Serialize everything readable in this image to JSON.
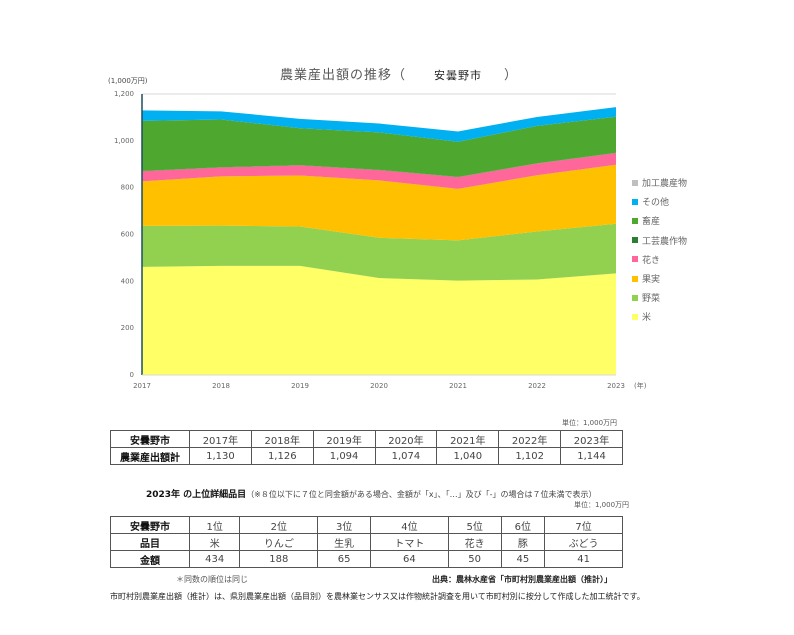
{
  "chart": {
    "title": "農業産出額の推移（",
    "city": "安曇野市",
    "title_close": "）",
    "y_unit": "(1,000万円)",
    "x_suffix": "(年)"
  },
  "chart_data": {
    "type": "area",
    "stacked": true,
    "title": "農業産出額の推移（安曇野市）",
    "xlabel": "(年)",
    "ylabel": "(1,000万円)",
    "ylim": [
      0,
      1200
    ],
    "yticks": [
      0,
      200,
      400,
      600,
      800,
      1000,
      1200
    ],
    "ytick_labels": [
      "0",
      "200",
      "400",
      "600",
      "800",
      "1,000",
      "1,200"
    ],
    "categories": [
      "2017",
      "2018",
      "2019",
      "2020",
      "2021",
      "2022",
      "2023"
    ],
    "legend_position": "right",
    "grid": false,
    "series": [
      {
        "name": "米",
        "color": "#ffff66",
        "values": [
          462,
          466,
          466,
          414,
          403,
          408,
          434
        ]
      },
      {
        "name": "野菜",
        "color": "#92d050",
        "values": [
          175,
          172,
          168,
          172,
          172,
          205,
          212
        ]
      },
      {
        "name": "果実",
        "color": "#ffc000",
        "values": [
          190,
          210,
          218,
          245,
          220,
          240,
          252
        ]
      },
      {
        "name": "花き",
        "color": "#ff6699",
        "values": [
          43,
          38,
          43,
          44,
          50,
          50,
          50
        ]
      },
      {
        "name": "工芸農作物",
        "color": "#2e7d32",
        "values": [
          1,
          1,
          1,
          1,
          1,
          1,
          1
        ]
      },
      {
        "name": "畜産",
        "color": "#4ea72e",
        "values": [
          214,
          204,
          158,
          160,
          150,
          160,
          154
        ]
      },
      {
        "name": "その他",
        "color": "#00b0f0",
        "values": [
          45,
          35,
          40,
          38,
          44,
          38,
          41
        ]
      },
      {
        "name": "加工農産物",
        "color": "#bfbfbf",
        "values": [
          0,
          0,
          0,
          0,
          0,
          0,
          0
        ]
      }
    ],
    "legend_order": [
      "加工農産物",
      "その他",
      "畜産",
      "工芸農作物",
      "花き",
      "果実",
      "野菜",
      "米"
    ]
  },
  "table1": {
    "unit": "単位：1,000万円",
    "header_label": "安曇野市",
    "years": [
      "2017年",
      "2018年",
      "2019年",
      "2020年",
      "2021年",
      "2022年",
      "2023年"
    ],
    "row_label": "農業産出額計",
    "totals": [
      "1,130",
      "1,126",
      "1,094",
      "1,074",
      "1,040",
      "1,102",
      "1,144"
    ]
  },
  "table2": {
    "title_bold": "2023年 の上位詳細品目",
    "title_note": "（※８位以下に７位と同金額がある場合、金額が「x」、「…」及び「-」の場合は７位未満で表示）",
    "unit": "単位：1,000万円",
    "header_label": "安曇野市",
    "ranks": [
      "1位",
      "2位",
      "3位",
      "4位",
      "5位",
      "6位",
      "7位"
    ],
    "item_label": "品目",
    "items": [
      "米",
      "りんご",
      "生乳",
      "トマト",
      "花き",
      "豚",
      "ぶどう"
    ],
    "amount_label": "金額",
    "amounts": [
      "434",
      "188",
      "65",
      "64",
      "50",
      "45",
      "41"
    ]
  },
  "notes": {
    "tie": "＊同数の順位は同じ",
    "source": "出典：農林水産省「市町村別農業産出額（推計）」",
    "footnote": "市町村別農業産出額（推計）は、県別農業産出額（品目別）を農林業センサス又は作物統計調査を用いて市町村別に按分して作成した加工統計です。"
  }
}
